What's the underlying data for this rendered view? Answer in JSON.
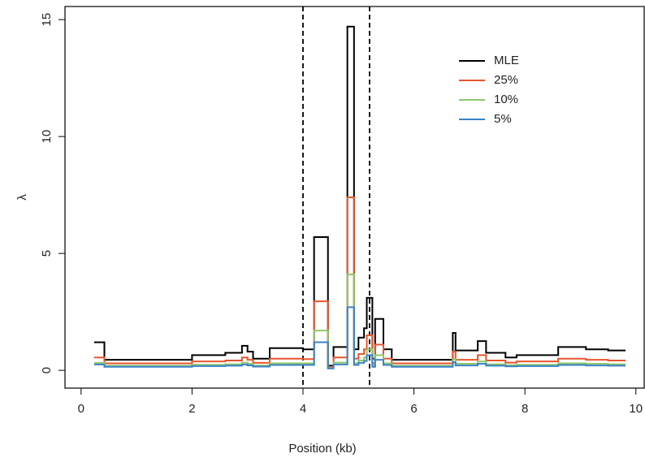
{
  "chart_data": {
    "type": "step",
    "x_label": "Position (kb)",
    "y_label": "λ",
    "x": [
      0.25,
      0.42,
      2.0,
      2.6,
      2.9,
      3.0,
      3.1,
      3.4,
      4.0,
      4.2,
      4.45,
      4.55,
      4.8,
      4.92,
      5.0,
      5.1,
      5.15,
      5.25,
      5.3,
      5.45,
      5.6,
      6.7,
      6.75,
      7.15,
      7.3,
      7.65,
      7.85,
      8.6,
      9.1,
      9.5
    ],
    "xend": 9.8,
    "series": [
      {
        "name": "MLE",
        "color": "#000000",
        "values": [
          1.2,
          0.45,
          0.65,
          0.75,
          1.05,
          0.8,
          0.5,
          0.95,
          0.9,
          5.7,
          0.2,
          1.0,
          14.7,
          0.9,
          1.4,
          1.8,
          3.1,
          0.5,
          2.2,
          0.9,
          0.45,
          1.6,
          0.85,
          1.25,
          0.75,
          0.55,
          0.65,
          1.0,
          0.9,
          0.85
        ]
      },
      {
        "name": "25%",
        "color": "#e8542c",
        "values": [
          0.55,
          0.3,
          0.38,
          0.42,
          0.55,
          0.45,
          0.32,
          0.5,
          0.48,
          2.95,
          0.15,
          0.55,
          7.4,
          0.5,
          0.7,
          0.9,
          1.5,
          0.3,
          1.1,
          0.5,
          0.3,
          0.8,
          0.45,
          0.65,
          0.42,
          0.33,
          0.38,
          0.5,
          0.45,
          0.42
        ]
      },
      {
        "name": "10%",
        "color": "#8dc86a",
        "values": [
          0.32,
          0.2,
          0.24,
          0.26,
          0.33,
          0.28,
          0.21,
          0.3,
          0.3,
          1.7,
          0.1,
          0.33,
          4.1,
          0.3,
          0.42,
          0.55,
          0.9,
          0.2,
          0.65,
          0.3,
          0.2,
          0.48,
          0.28,
          0.38,
          0.26,
          0.22,
          0.24,
          0.3,
          0.28,
          0.26
        ]
      },
      {
        "name": "5%",
        "color": "#3b82c8",
        "values": [
          0.25,
          0.15,
          0.18,
          0.2,
          0.25,
          0.21,
          0.16,
          0.23,
          0.23,
          1.2,
          0.08,
          0.25,
          2.7,
          0.23,
          0.32,
          0.4,
          0.65,
          0.15,
          0.45,
          0.23,
          0.15,
          0.35,
          0.21,
          0.28,
          0.2,
          0.17,
          0.18,
          0.23,
          0.21,
          0.2
        ]
      }
    ],
    "vlines": [
      4.0,
      5.2
    ],
    "xlim": [
      -0.29,
      10.15
    ],
    "ylim": [
      -0.76,
      15.56
    ],
    "xticks": [
      0,
      2,
      4,
      6,
      8,
      10
    ],
    "yticks": [
      0,
      5,
      10,
      15
    ],
    "legend": "top-right"
  }
}
